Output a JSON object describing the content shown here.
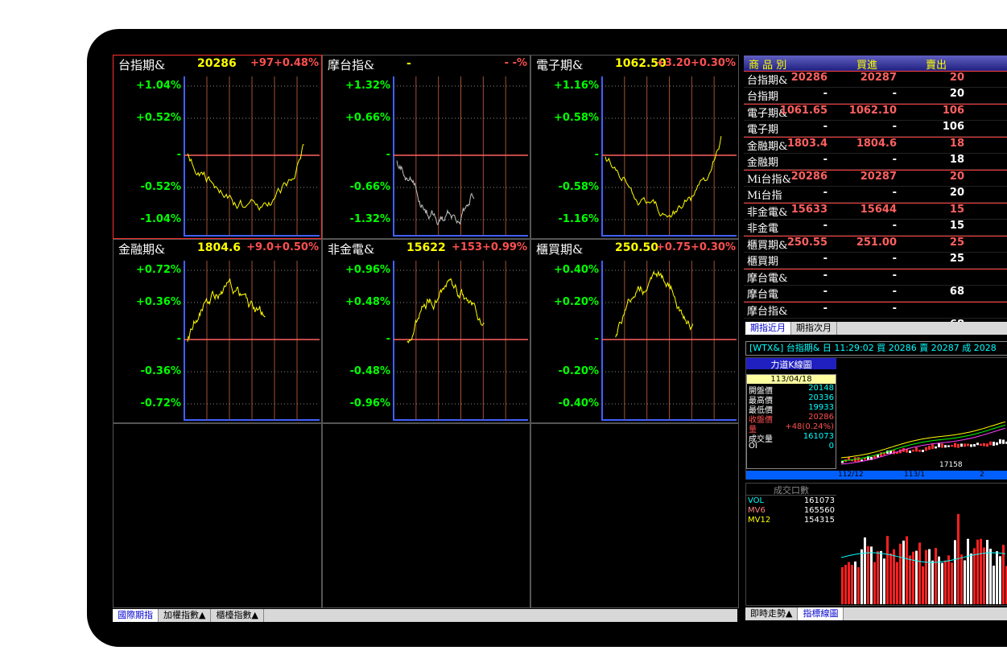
{
  "panels": [
    {
      "name": "台指期&",
      "price": "20286",
      "change": "+97+0.48%",
      "labels": [
        "+1.04%",
        "+0.52%",
        "-",
        "-0.52%",
        "-1.04%"
      ],
      "selected": true
    },
    {
      "name": "摩台指&",
      "price": "-",
      "change": "- -%",
      "labels": [
        "+1.32%",
        "+0.66%",
        "-",
        "-0.66%",
        "-1.32%"
      ],
      "selected": false
    },
    {
      "name": "電子期&",
      "price": "1062.50",
      "change": "+3.20+0.30%",
      "labels": [
        "+1.16%",
        "+0.58%",
        "-",
        "-0.58%",
        "-1.16%"
      ],
      "selected": false
    },
    {
      "name": "金融期&",
      "price": "1804.6",
      "change": "+9.0+0.50%",
      "labels": [
        "+0.72%",
        "+0.36%",
        "-",
        "-0.36%",
        "-0.72%"
      ],
      "selected": false
    },
    {
      "name": "非金電&",
      "price": "15622",
      "change": "+153+0.99%",
      "labels": [
        "+0.96%",
        "+0.48%",
        "-",
        "-0.48%",
        "-0.96%"
      ],
      "selected": false
    },
    {
      "name": "櫃買期&",
      "price": "250.50",
      "change": "+0.75+0.30%",
      "labels": [
        "+0.40%",
        "+0.20%",
        "-",
        "-0.20%",
        "-0.40%"
      ],
      "selected": false
    }
  ],
  "bottom_tabs": [
    "國際期指",
    "加權指數▲",
    "櫃檯指數▲"
  ],
  "quote_table": {
    "headers": [
      "商 品 別",
      "買進",
      "賣出",
      ""
    ],
    "rows": [
      [
        "台指期&",
        "20286",
        "20287",
        "20"
      ],
      [
        "台指期",
        "-",
        "-",
        "20"
      ],
      [
        "電子期&",
        "1061.65",
        "1062.10",
        "106"
      ],
      [
        "電子期",
        "-",
        "-",
        "106"
      ],
      [
        "金融期&",
        "1803.4",
        "1804.6",
        "18"
      ],
      [
        "金融期",
        "-",
        "-",
        "18"
      ],
      [
        "Mi台指&",
        "20286",
        "20287",
        "20"
      ],
      [
        "Mi台指",
        "-",
        "-",
        "20"
      ],
      [
        "非金電&",
        "15633",
        "15644",
        "15"
      ],
      [
        "非金電",
        "-",
        "-",
        "15"
      ],
      [
        "櫃買期&",
        "250.55",
        "251.00",
        "25"
      ],
      [
        "櫃買期",
        "-",
        "-",
        "25"
      ],
      [
        "摩台電&",
        "-",
        "-",
        ""
      ],
      [
        "摩台電",
        "-",
        "-",
        "68"
      ],
      [
        "摩台指&",
        "-",
        "-",
        ""
      ],
      [
        "摩台指",
        "-",
        "-",
        "68"
      ]
    ]
  },
  "quote_tabs": [
    "期指近月",
    "期指次月"
  ],
  "kline": {
    "header": "[WTX&] 台指期& 日 11:29:02 買 20286 賣 20287 成 2028",
    "title": "力道K線圖",
    "date": "113/04/18",
    "stats": [
      [
        "開盤價",
        "20148"
      ],
      [
        "最高價",
        "20336"
      ],
      [
        "最低價",
        "19933"
      ],
      [
        "收盤價",
        "20286"
      ],
      [
        "量",
        "+48(0.24%)"
      ],
      [
        "成交量",
        "161073"
      ],
      [
        "OI",
        "0"
      ]
    ],
    "xlabels": [
      "112/12",
      "113/1",
      "2"
    ],
    "low_label": "17158"
  },
  "volume": {
    "title": "成交口數",
    "stats": [
      [
        "VOL",
        "161073"
      ],
      [
        "MV6",
        "165560"
      ],
      [
        "MV12",
        "154315"
      ]
    ]
  },
  "right_tabs": [
    "即時走勢▲",
    "指標線圖"
  ]
}
